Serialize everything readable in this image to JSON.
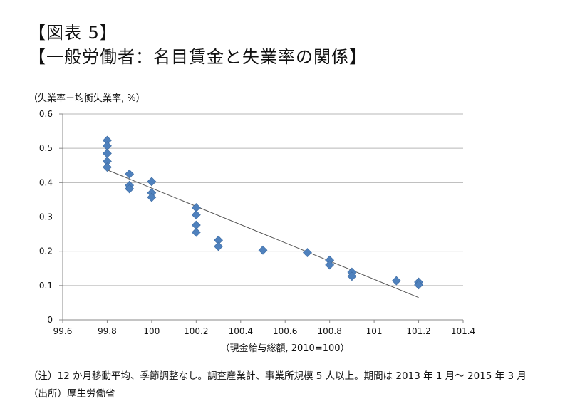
{
  "header": {
    "figure_label": "【図表 5】",
    "title": "【一般労働者：名目賃金と失業率の関係】"
  },
  "notes": {
    "note": "（注）12 か月移動平均、季節調整なし。調査産業計、事業所規模 5 人以上。期間は 2013 年 1 月～ 2015 年 3 月",
    "source": "（出所）厚生労働省"
  },
  "chart_data": {
    "type": "scatter",
    "title": "",
    "xlabel": "（現金給与総額, 2010=100）",
    "ylabel": "（失業率－均衡失業率, %）",
    "xlim": [
      99.6,
      101.4
    ],
    "ylim": [
      0,
      0.6
    ],
    "x_ticks": [
      "99.6",
      "99.8",
      "100",
      "100.2",
      "100.4",
      "100.6",
      "100.8",
      "101",
      "101.2",
      "101.4"
    ],
    "y_ticks": [
      "0",
      "0.1",
      "0.2",
      "0.3",
      "0.4",
      "0.5",
      "0.6"
    ],
    "grid": "horizontal",
    "marker_color": "#4f81bd",
    "trendline_color": "#555555",
    "points": [
      [
        99.8,
        0.523
      ],
      [
        99.8,
        0.507
      ],
      [
        99.8,
        0.485
      ],
      [
        99.8,
        0.462
      ],
      [
        99.8,
        0.445
      ],
      [
        99.9,
        0.425
      ],
      [
        99.9,
        0.392
      ],
      [
        99.9,
        0.382
      ],
      [
        100.0,
        0.403
      ],
      [
        100.0,
        0.37
      ],
      [
        100.0,
        0.357
      ],
      [
        100.2,
        0.327
      ],
      [
        100.2,
        0.306
      ],
      [
        100.2,
        0.276
      ],
      [
        100.2,
        0.255
      ],
      [
        100.3,
        0.232
      ],
      [
        100.3,
        0.214
      ],
      [
        100.5,
        0.203
      ],
      [
        100.7,
        0.196
      ],
      [
        100.8,
        0.174
      ],
      [
        100.8,
        0.16
      ],
      [
        100.9,
        0.139
      ],
      [
        100.9,
        0.127
      ],
      [
        101.1,
        0.114
      ],
      [
        101.2,
        0.11
      ],
      [
        101.2,
        0.102
      ]
    ],
    "trendline": [
      [
        99.8,
        0.437
      ],
      [
        101.2,
        0.065
      ]
    ]
  }
}
